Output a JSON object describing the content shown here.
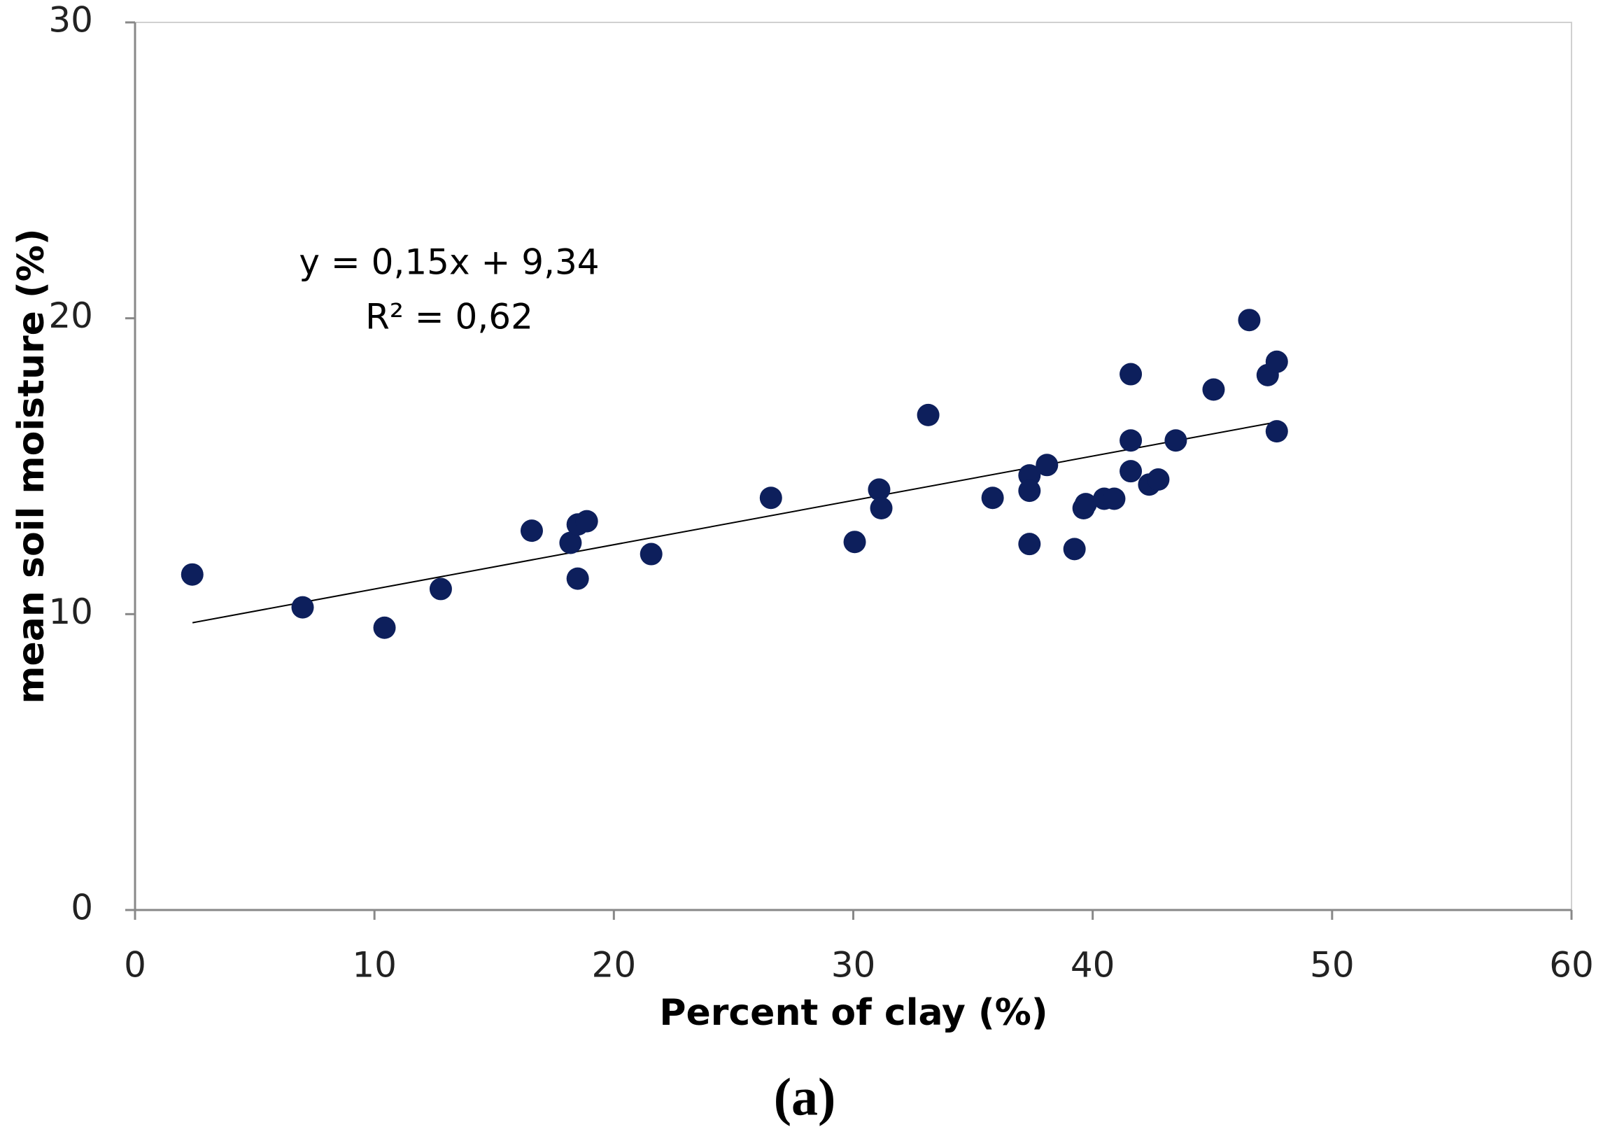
{
  "chart_data": {
    "type": "scatter",
    "x_label": "Percent of clay (%)",
    "y_label": "mean soil moisture (%)",
    "caption": "(a)",
    "annotations": [
      "y = 0,15x + 9,34",
      "R² = 0,62"
    ],
    "color": "#0d1f5c",
    "trendline": {
      "x": [
        2.4,
        47.4
      ],
      "y": [
        9.71,
        16.45
      ]
    },
    "x": [
      2.39,
      7.0,
      10.42,
      12.77,
      16.57,
      18.19,
      18.49,
      18.87,
      18.49,
      21.56,
      26.56,
      30.06,
      31.08,
      31.17,
      33.13,
      35.82,
      37.36,
      37.36,
      37.36,
      38.09,
      39.24,
      39.62,
      39.71,
      40.48,
      40.9,
      41.59,
      41.59,
      41.59,
      42.36,
      42.74,
      43.47,
      45.05,
      46.54,
      47.31,
      47.69,
      47.69
    ],
    "values": [
      11.34,
      10.23,
      9.54,
      10.85,
      12.82,
      12.41,
      13.03,
      13.14,
      11.2,
      12.03,
      13.93,
      12.44,
      14.21,
      13.58,
      16.73,
      13.93,
      14.69,
      14.17,
      12.37,
      15.04,
      12.2,
      13.58,
      13.72,
      13.9,
      13.9,
      18.11,
      15.87,
      14.83,
      14.38,
      14.55,
      15.87,
      17.59,
      19.94,
      18.08,
      18.53,
      16.18
    ],
    "xlim": [
      0,
      60
    ],
    "xticks": [
      0,
      10,
      20,
      30,
      40,
      50,
      60
    ],
    "ylim": [
      0,
      30
    ],
    "yticks": [
      0,
      10,
      20,
      30
    ]
  }
}
